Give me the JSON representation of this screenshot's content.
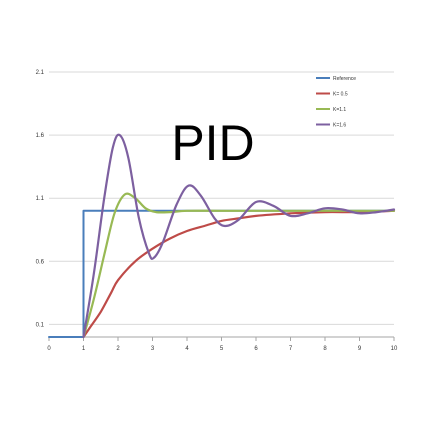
{
  "chart_data": {
    "type": "line",
    "title": "PID",
    "xlabel": "",
    "ylabel": "",
    "xlim": [
      0,
      10
    ],
    "ylim": [
      0,
      2.1
    ],
    "x_ticks": [
      "0",
      "1",
      "2",
      "3",
      "4",
      "5",
      "6",
      "7",
      "8",
      "9",
      "10"
    ],
    "y_ticks": [
      "0.1",
      "0.6",
      "1.1",
      "1.6",
      "2.1"
    ],
    "grid": "horizontal",
    "legend_position": "top-right",
    "series": [
      {
        "name": "Reference",
        "color": "#4a7ebb",
        "points": [
          [
            0,
            0
          ],
          [
            1,
            0
          ],
          [
            1,
            1
          ],
          [
            10,
            1
          ]
        ]
      },
      {
        "name": "K= 0.5",
        "color": "#be4b48",
        "points": [
          [
            1,
            0
          ],
          [
            1.2,
            0.08
          ],
          [
            1.5,
            0.2
          ],
          [
            1.8,
            0.35
          ],
          [
            2,
            0.45
          ],
          [
            2.5,
            0.6
          ],
          [
            3,
            0.7
          ],
          [
            3.5,
            0.78
          ],
          [
            4,
            0.84
          ],
          [
            4.5,
            0.88
          ],
          [
            5,
            0.92
          ],
          [
            5.5,
            0.94
          ],
          [
            6,
            0.96
          ],
          [
            7,
            0.98
          ],
          [
            8,
            0.99
          ],
          [
            9,
            0.99
          ],
          [
            10,
            1.0
          ]
        ]
      },
      {
        "name": "K=1.1",
        "color": "#98b954",
        "points": [
          [
            1,
            0
          ],
          [
            1.3,
            0.3
          ],
          [
            1.6,
            0.65
          ],
          [
            1.9,
            0.98
          ],
          [
            2.2,
            1.13
          ],
          [
            2.5,
            1.1
          ],
          [
            2.8,
            1.02
          ],
          [
            3.1,
            0.99
          ],
          [
            3.5,
            0.99
          ],
          [
            4,
            1.0
          ],
          [
            5,
            1.0
          ],
          [
            6,
            1.0
          ],
          [
            7,
            1.0
          ],
          [
            8,
            1.0
          ],
          [
            9,
            1.0
          ],
          [
            10,
            1.0
          ]
        ]
      },
      {
        "name": "K=1.6",
        "color": "#7d60a0",
        "points": [
          [
            1,
            0
          ],
          [
            1.3,
            0.5
          ],
          [
            1.6,
            1.1
          ],
          [
            1.85,
            1.5
          ],
          [
            2.05,
            1.6
          ],
          [
            2.3,
            1.42
          ],
          [
            2.6,
            0.95
          ],
          [
            2.9,
            0.66
          ],
          [
            3.05,
            0.63
          ],
          [
            3.3,
            0.75
          ],
          [
            3.7,
            1.05
          ],
          [
            4.05,
            1.2
          ],
          [
            4.4,
            1.12
          ],
          [
            4.8,
            0.94
          ],
          [
            5.1,
            0.88
          ],
          [
            5.5,
            0.93
          ],
          [
            6,
            1.07
          ],
          [
            6.5,
            1.04
          ],
          [
            7,
            0.96
          ],
          [
            7.5,
            0.98
          ],
          [
            8,
            1.02
          ],
          [
            8.5,
            1.01
          ],
          [
            9,
            0.98
          ],
          [
            9.5,
            0.99
          ],
          [
            10,
            1.01
          ]
        ]
      }
    ]
  }
}
